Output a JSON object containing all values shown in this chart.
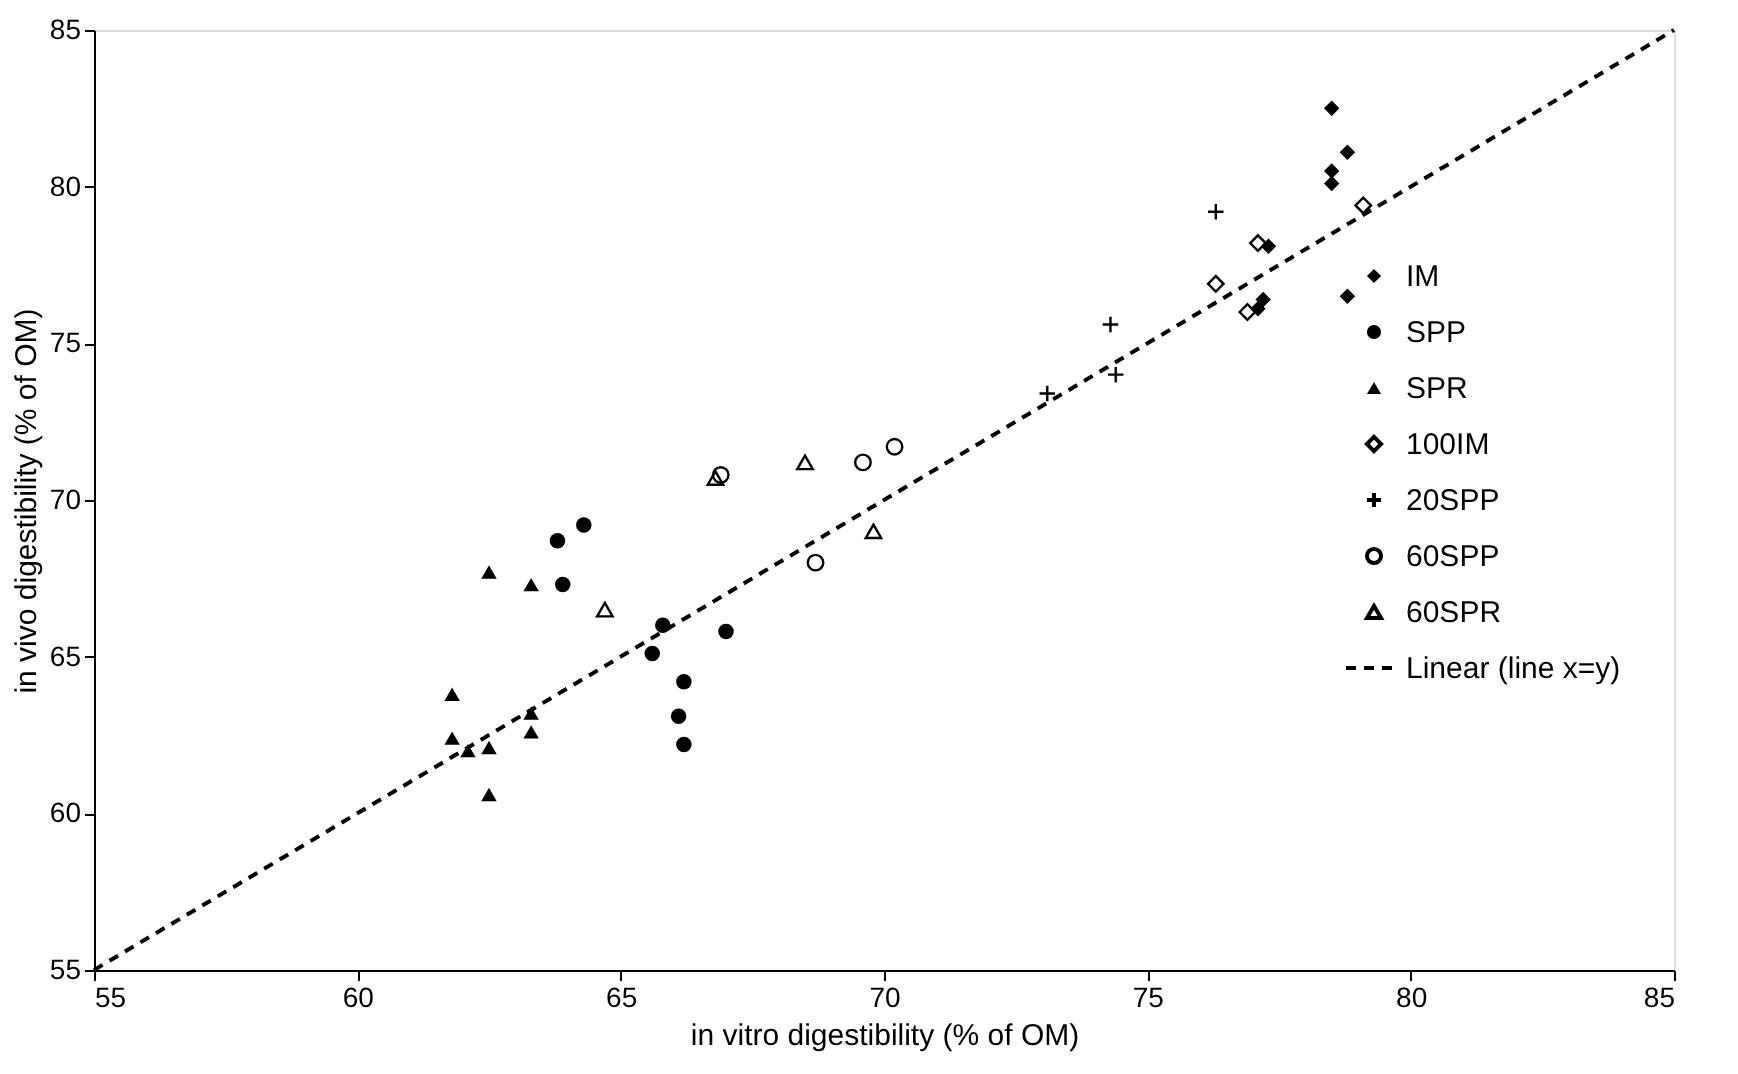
{
  "chart_data": {
    "type": "scatter",
    "xlabel": "in vitro digestibility (% of OM)",
    "ylabel": "in vivo digestibility (% of OM)",
    "xlim": [
      55,
      85
    ],
    "ylim": [
      55,
      85
    ],
    "xticks": [
      55,
      60,
      65,
      70,
      75,
      80,
      85
    ],
    "yticks": [
      55,
      60,
      65,
      70,
      75,
      80,
      85
    ],
    "grid": false,
    "legend": "right",
    "series": [
      {
        "name": "IM",
        "color": "#000000",
        "marker": "diamond",
        "x": [
          78.5,
          78.5,
          78.5,
          78.8,
          77.3,
          77.2,
          77.1,
          78.8
        ],
        "values": [
          82.5,
          80.5,
          80.1,
          81.1,
          78.1,
          76.4,
          76.1,
          76.5
        ]
      },
      {
        "name": "SPP",
        "color": "#000000",
        "marker": "circle",
        "x": [
          63.8,
          64.3,
          63.9,
          65.6,
          65.8,
          67.0,
          66.2,
          66.1,
          66.2
        ],
        "values": [
          68.7,
          69.2,
          67.3,
          65.1,
          66.0,
          65.8,
          64.2,
          63.1,
          62.2
        ]
      },
      {
        "name": "SPR",
        "color": "#000000",
        "marker": "triangle",
        "x": [
          62.5,
          61.8,
          61.8,
          62.1,
          62.5,
          62.5,
          63.3,
          63.3,
          63.3
        ],
        "values": [
          67.7,
          63.8,
          62.4,
          62.0,
          62.1,
          60.6,
          67.3,
          63.2,
          62.6
        ]
      },
      {
        "name": "100IM",
        "color": "#000000",
        "marker": "diamond",
        "x": [
          79.1,
          77.1,
          76.3,
          76.9
        ],
        "values": [
          79.4,
          78.2,
          76.9,
          76.0
        ]
      },
      {
        "name": "20SPP",
        "color": "#000000",
        "marker": "cross",
        "x": [
          76.3,
          74.3,
          74.4,
          73.1
        ],
        "values": [
          79.2,
          75.6,
          74.0,
          73.4
        ]
      },
      {
        "name": "60SPP",
        "color": "#000000",
        "marker": "circle",
        "x": [
          66.9,
          69.6,
          70.2,
          68.7
        ],
        "values": [
          70.8,
          71.2,
          71.7,
          68.0
        ]
      },
      {
        "name": "60SPR",
        "color": "#000000",
        "marker": "triangle",
        "x": [
          66.8,
          68.5,
          69.8,
          64.7
        ],
        "values": [
          70.7,
          71.2,
          69.0,
          66.5
        ]
      },
      {
        "name": "Linear (line x=y)",
        "type": "line",
        "color": "#000000",
        "line_style": "dashed",
        "marker": "none",
        "x": [
          55,
          85
        ],
        "values": [
          55,
          85
        ]
      }
    ]
  }
}
